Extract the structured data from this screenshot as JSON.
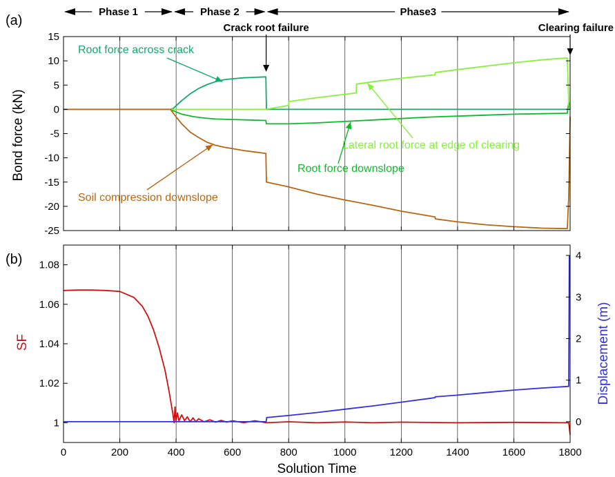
{
  "colors": {
    "root_across": "#14a86a",
    "root_down": "#0dbb2a",
    "lateral": "#84f23a",
    "soil": "#b8650e",
    "zero_line": "#1a9a7a",
    "sf": "#d01010",
    "disp": "#3030e0"
  },
  "phases": [
    {
      "label": "Phase 1",
      "from": 0,
      "to": 390
    },
    {
      "label": "Phase 2",
      "from": 390,
      "to": 720
    },
    {
      "label": "Phase3",
      "from": 720,
      "to": 1800
    }
  ],
  "events": [
    {
      "label": "Crack root failure",
      "x": 720
    },
    {
      "label": "Clearing failure",
      "x": 1800
    }
  ],
  "chart_data": [
    {
      "type": "line",
      "panel_label": "(a)",
      "xlabel": "",
      "ylabel": "Bond force (kN)",
      "xlim": [
        0,
        1800
      ],
      "ylim": [
        -25,
        15
      ],
      "yticks": [
        -25,
        -20,
        -15,
        -10,
        -5,
        0,
        5,
        10,
        15
      ],
      "grid": "vertical",
      "series": [
        {
          "name": "Root force across crack",
          "points": [
            [
              0,
              0
            ],
            [
              380,
              0
            ],
            [
              390,
              0.2
            ],
            [
              420,
              1.8
            ],
            [
              450,
              3.2
            ],
            [
              480,
              4.3
            ],
            [
              510,
              5.1
            ],
            [
              540,
              5.7
            ],
            [
              570,
              6.1
            ],
            [
              600,
              6.3
            ],
            [
              640,
              6.5
            ],
            [
              680,
              6.6
            ],
            [
              719,
              6.7
            ],
            [
              721,
              0
            ],
            [
              1800,
              0
            ]
          ]
        },
        {
          "name": "Root force downslope",
          "points": [
            [
              0,
              0
            ],
            [
              380,
              0
            ],
            [
              390,
              -0.3
            ],
            [
              420,
              -1.0
            ],
            [
              460,
              -1.5
            ],
            [
              500,
              -1.8
            ],
            [
              540,
              -2.0
            ],
            [
              600,
              -2.1
            ],
            [
              660,
              -2.2
            ],
            [
              719,
              -2.3
            ],
            [
              721,
              -3.0
            ],
            [
              800,
              -3.0
            ],
            [
              900,
              -2.8
            ],
            [
              1000,
              -2.5
            ],
            [
              1100,
              -2.2
            ],
            [
              1200,
              -1.9
            ],
            [
              1300,
              -1.6
            ],
            [
              1400,
              -1.4
            ],
            [
              1500,
              -1.2
            ],
            [
              1600,
              -1.0
            ],
            [
              1700,
              -0.9
            ],
            [
              1790,
              -0.8
            ],
            [
              1795,
              1.5
            ],
            [
              1800,
              0
            ]
          ]
        },
        {
          "name": "Lateral root force at edge of clearing",
          "points": [
            [
              0,
              0
            ],
            [
              720,
              0
            ],
            [
              800,
              0.8
            ],
            [
              801,
              1.6
            ],
            [
              900,
              2.4
            ],
            [
              1000,
              3.1
            ],
            [
              1040,
              3.4
            ],
            [
              1041,
              5.2
            ],
            [
              1100,
              5.7
            ],
            [
              1200,
              6.4
            ],
            [
              1300,
              7.0
            ],
            [
              1320,
              7.1
            ],
            [
              1321,
              7.6
            ],
            [
              1400,
              8.2
            ],
            [
              1500,
              8.9
            ],
            [
              1600,
              9.6
            ],
            [
              1700,
              10.2
            ],
            [
              1790,
              10.6
            ],
            [
              1795,
              1.0
            ],
            [
              1800,
              0
            ]
          ]
        },
        {
          "name": "Soil compression downslope",
          "points": [
            [
              0,
              0
            ],
            [
              380,
              0
            ],
            [
              390,
              -0.8
            ],
            [
              420,
              -3.0
            ],
            [
              450,
              -4.7
            ],
            [
              480,
              -5.8
            ],
            [
              510,
              -6.8
            ],
            [
              540,
              -7.4
            ],
            [
              570,
              -7.8
            ],
            [
              600,
              -8.1
            ],
            [
              640,
              -8.5
            ],
            [
              680,
              -8.8
            ],
            [
              719,
              -9.1
            ],
            [
              721,
              -15.0
            ],
            [
              800,
              -16.0
            ],
            [
              900,
              -17.5
            ],
            [
              1000,
              -18.7
            ],
            [
              1100,
              -19.8
            ],
            [
              1200,
              -21.0
            ],
            [
              1300,
              -22.0
            ],
            [
              1320,
              -22.2
            ],
            [
              1321,
              -22.6
            ],
            [
              1400,
              -23.2
            ],
            [
              1500,
              -23.8
            ],
            [
              1600,
              -24.2
            ],
            [
              1700,
              -24.5
            ],
            [
              1790,
              -24.6
            ],
            [
              1795,
              -18
            ],
            [
              1800,
              -1.5
            ]
          ]
        }
      ]
    },
    {
      "type": "line",
      "panel_label": "(b)",
      "xlabel": "Solution Time",
      "ylabel": "SF",
      "y2label": "Displacement (m)",
      "xlim": [
        0,
        1800
      ],
      "xticks": [
        0,
        200,
        400,
        600,
        800,
        1000,
        1200,
        1400,
        1600,
        1800
      ],
      "ylim": [
        0.99,
        1.09
      ],
      "yticks": [
        1,
        1.02,
        1.04,
        1.06,
        1.08
      ],
      "y2lim": [
        -0.5,
        4.25
      ],
      "y2ticks": [
        0,
        1,
        2,
        3,
        4
      ],
      "grid": "vertical",
      "series": [
        {
          "axis": "left",
          "points": [
            [
              0,
              1.067
            ],
            [
              50,
              1.0672
            ],
            [
              100,
              1.0672
            ],
            [
              150,
              1.067
            ],
            [
              200,
              1.0665
            ],
            [
              250,
              1.0635
            ],
            [
              280,
              1.059
            ],
            [
              300,
              1.054
            ],
            [
              320,
              1.047
            ],
            [
              340,
              1.038
            ],
            [
              360,
              1.027
            ],
            [
              375,
              1.016
            ],
            [
              388,
              1.005
            ],
            [
              393,
              1.0
            ],
            [
              396,
              1.008
            ],
            [
              400,
              1.001
            ],
            [
              405,
              1.005
            ],
            [
              410,
              1.001
            ],
            [
              420,
              1.004
            ],
            [
              430,
              1.001
            ],
            [
              440,
              1.003
            ],
            [
              450,
              1.0005
            ],
            [
              460,
              1.0025
            ],
            [
              470,
              1.0005
            ],
            [
              480,
              1.002
            ],
            [
              500,
              1.0005
            ],
            [
              520,
              1.0015
            ],
            [
              540,
              1.0003
            ],
            [
              560,
              1.0012
            ],
            [
              580,
              1.0003
            ],
            [
              600,
              1.001
            ],
            [
              640,
              1.0
            ],
            [
              680,
              1.001
            ],
            [
              720,
              1.0
            ],
            [
              800,
              1.0005
            ],
            [
              900,
              1.0
            ],
            [
              1000,
              1.0004
            ],
            [
              1100,
              1.0
            ],
            [
              1200,
              1.0003
            ],
            [
              1400,
              1.0
            ],
            [
              1600,
              1.0002
            ],
            [
              1795,
              1.0
            ],
            [
              1800,
              0.994
            ]
          ]
        },
        {
          "axis": "right",
          "points": [
            [
              0,
              0
            ],
            [
              720,
              0
            ],
            [
              722,
              0.1
            ],
            [
              800,
              0.15
            ],
            [
              900,
              0.22
            ],
            [
              1000,
              0.3
            ],
            [
              1100,
              0.38
            ],
            [
              1200,
              0.47
            ],
            [
              1300,
              0.56
            ],
            [
              1320,
              0.58
            ],
            [
              1321,
              0.6
            ],
            [
              1400,
              0.64
            ],
            [
              1500,
              0.7
            ],
            [
              1600,
              0.76
            ],
            [
              1700,
              0.81
            ],
            [
              1795,
              0.85
            ],
            [
              1797,
              4.0
            ]
          ]
        }
      ]
    }
  ],
  "annotations": [
    {
      "text": "Root force across crack",
      "series": "root_across",
      "target": [
        565,
        5.7
      ]
    },
    {
      "text": "Lateral root force at edge of clearing",
      "series": "lateral",
      "target": [
        1080,
        5.4
      ]
    },
    {
      "text": "Root force downslope",
      "series": "root_down",
      "target": [
        1020,
        -2.6
      ]
    },
    {
      "text": "Soil compression downslope",
      "series": "soil",
      "target": [
        530,
        -7.3
      ]
    }
  ]
}
